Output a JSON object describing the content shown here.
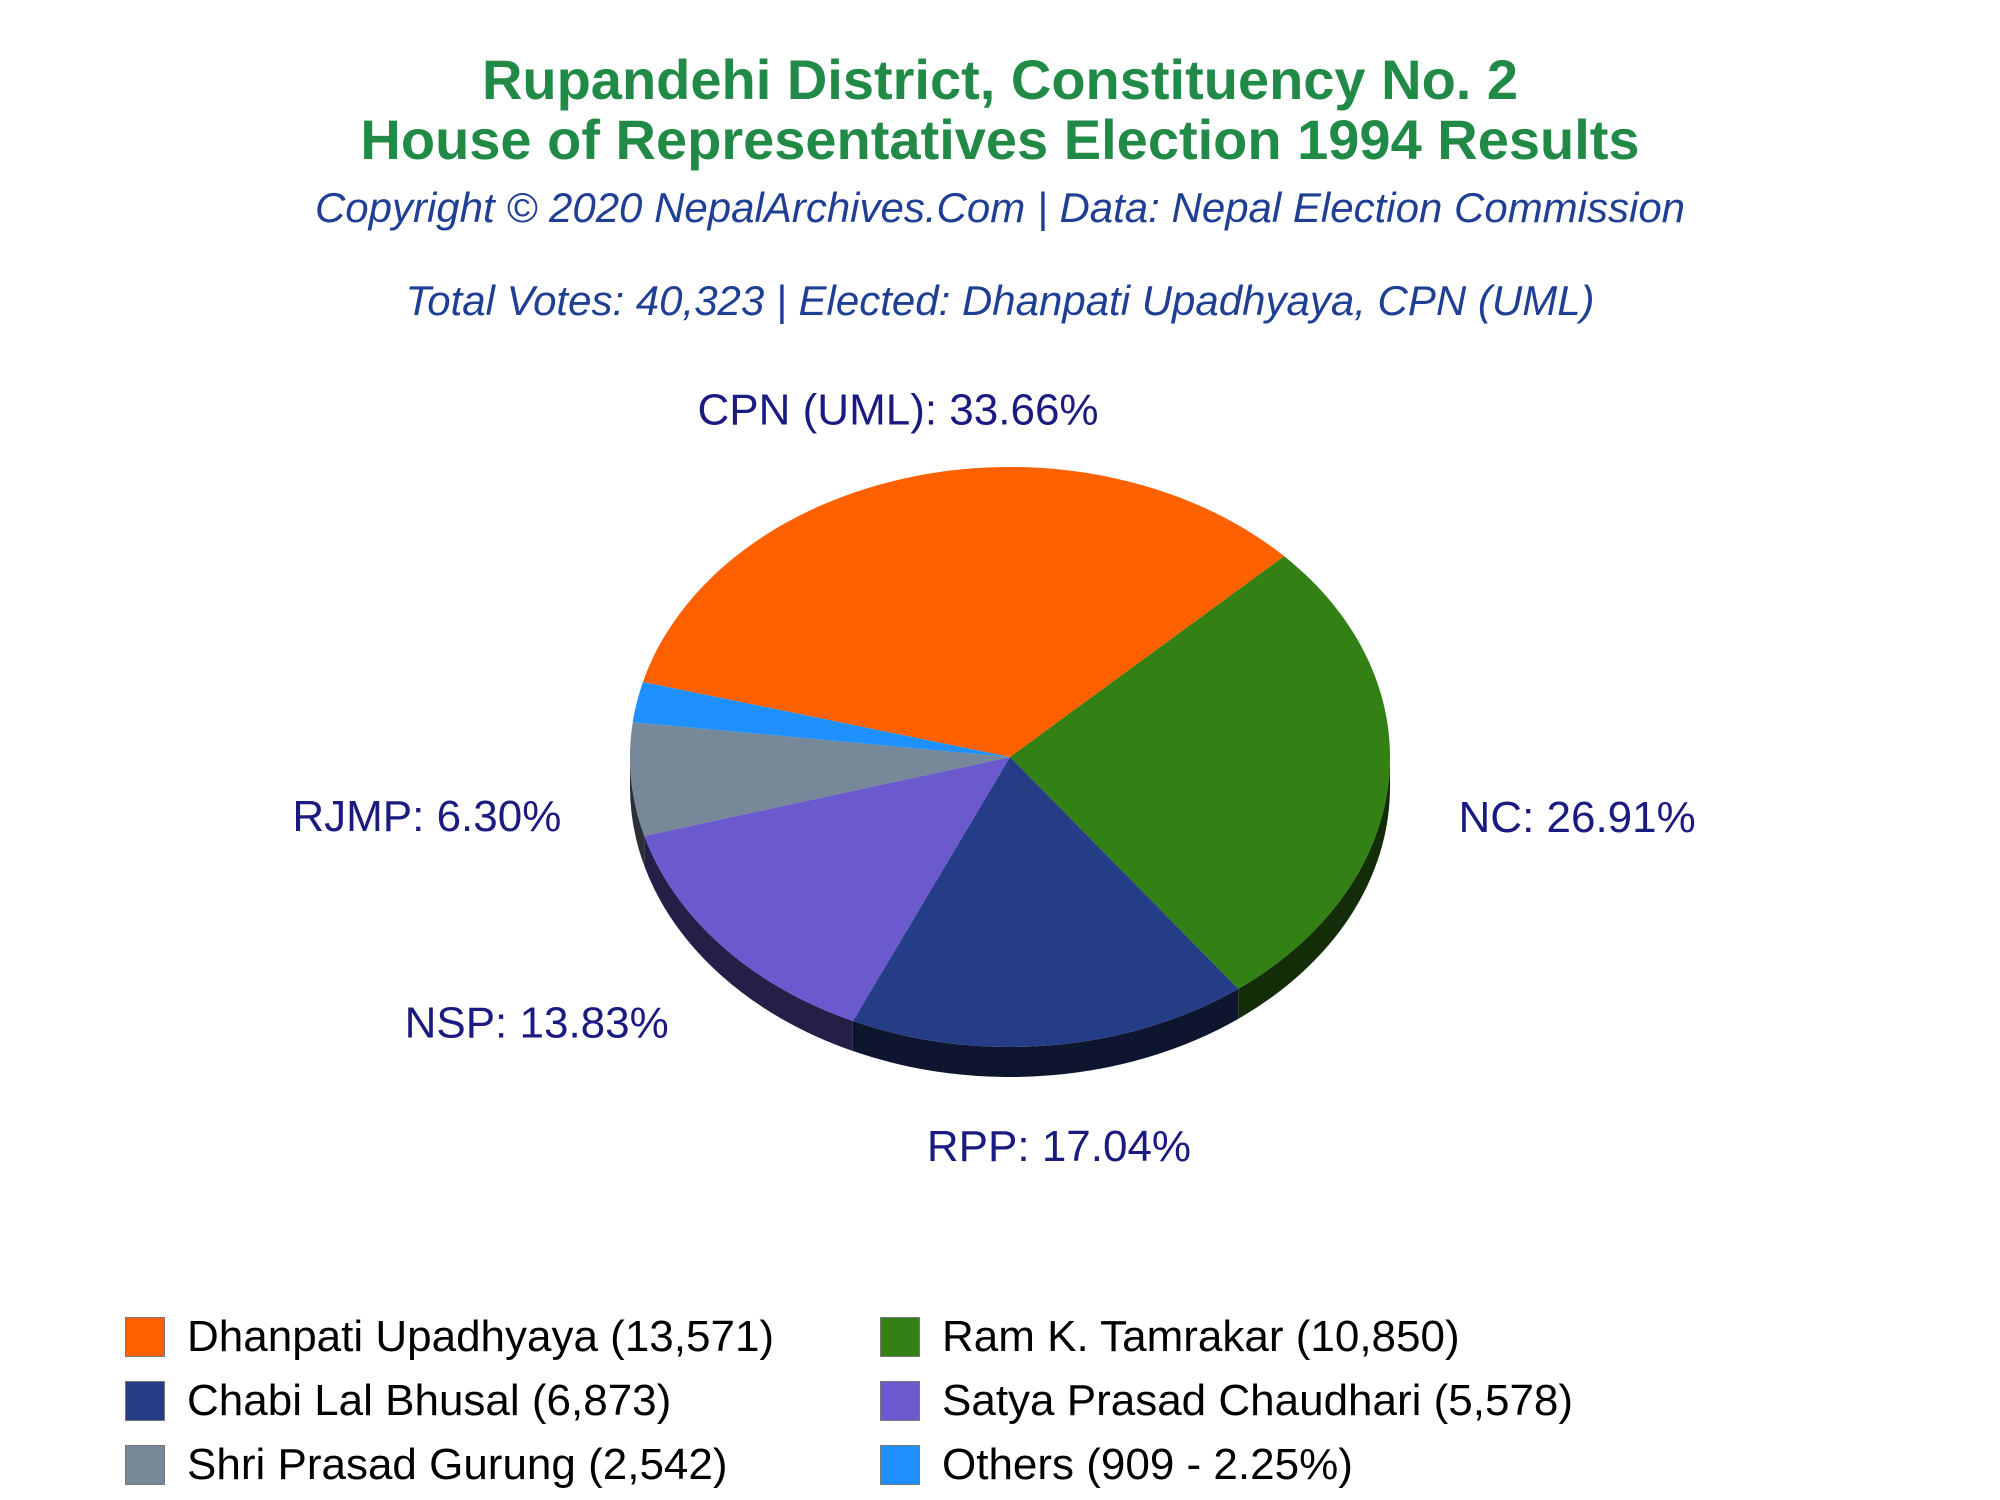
{
  "header": {
    "title_line1": "Rupandehi District, Constituency No. 2",
    "title_line2": "House of Representatives Election 1994 Results",
    "copyright": "Copyright © 2020 NepalArchives.Com | Data: Nepal Election Commission",
    "summary": "Total Votes: 40,323 | Elected: Dhanpati Upadhyaya, CPN (UML)"
  },
  "chart_data": {
    "type": "pie",
    "title": "Rupandehi District, Constituency No. 2 House of Representatives Election 1994 Results",
    "total_votes": 40323,
    "slices": [
      {
        "label": "CPN (UML): 33.66%",
        "party": "CPN (UML)",
        "candidate": "Dhanpati Upadhyaya",
        "votes": 13571,
        "percent": 33.66,
        "color": "#ff6100"
      },
      {
        "label": "NC: 26.91%",
        "party": "NC",
        "candidate": "Ram K. Tamrakar",
        "votes": 10850,
        "percent": 26.91,
        "color": "#338015"
      },
      {
        "label": "RPP: 17.04%",
        "party": "RPP",
        "candidate": "Chabi Lal Bhusal",
        "votes": 6873,
        "percent": 17.04,
        "color": "#253d87"
      },
      {
        "label": "NSP: 13.83%",
        "party": "NSP",
        "candidate": "Satya Prasad Chaudhari",
        "votes": 5578,
        "percent": 13.83,
        "color": "#6a5acd"
      },
      {
        "label": "RJMP: 6.30%",
        "party": "RJMP",
        "candidate": "Shri Prasad Gurung",
        "votes": 2542,
        "percent": 6.3,
        "color": "#778899"
      },
      {
        "label": "",
        "party": "Others",
        "candidate": "Others",
        "votes": 909,
        "percent": 2.25,
        "color": "#1e90ff"
      }
    ],
    "label_color": "#1a1a80",
    "legend_placement": "bottom"
  },
  "legend": [
    {
      "text": "Dhanpati Upadhyaya (13,571)",
      "color": "#ff6100"
    },
    {
      "text": "Ram K. Tamrakar (10,850)",
      "color": "#338015"
    },
    {
      "text": "Chabi Lal Bhusal (6,873)",
      "color": "#253d87"
    },
    {
      "text": "Satya Prasad Chaudhari (5,578)",
      "color": "#6a5acd"
    },
    {
      "text": "Shri Prasad Gurung (2,542)",
      "color": "#778899"
    },
    {
      "text": "Others (909 - 2.25%)",
      "color": "#1e90ff"
    }
  ]
}
